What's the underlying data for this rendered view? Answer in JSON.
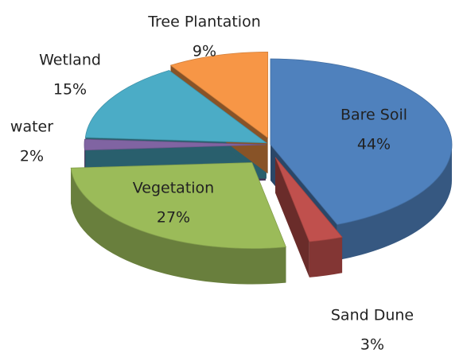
{
  "chart_data": {
    "type": "pie3d",
    "categories": [
      "Bare Soil",
      "Sand Dune",
      "Vegetation",
      "water",
      "Wetland",
      "Tree Plantation"
    ],
    "values": [
      44,
      3,
      27,
      2,
      15,
      9
    ],
    "value_labels": [
      "44%",
      "3%",
      "27%",
      "2%",
      "15%",
      "9%"
    ],
    "colors": [
      "#4f81bd",
      "#c0504d",
      "#9bbb59",
      "#8064a2",
      "#4bacc6",
      "#f79646"
    ]
  }
}
